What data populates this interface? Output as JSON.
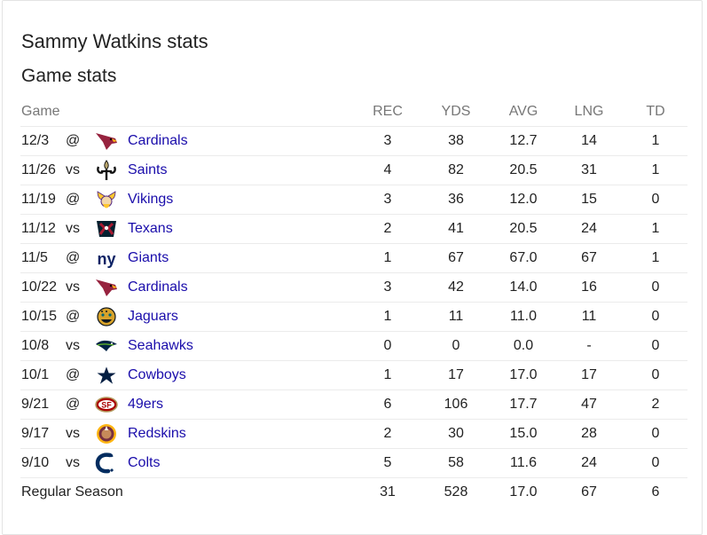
{
  "title": "Sammy Watkins stats",
  "subtitle": "Game stats",
  "headers": {
    "game": "Game",
    "rec": "REC",
    "yds": "YDS",
    "avg": "AVG",
    "lng": "LNG",
    "td": "TD"
  },
  "games": [
    {
      "date": "12/3",
      "loc": "@",
      "team": "Cardinals",
      "icon": "cardinals-logo-icon",
      "rec": "3",
      "yds": "38",
      "avg": "12.7",
      "lng": "14",
      "td": "1"
    },
    {
      "date": "11/26",
      "loc": "vs",
      "team": "Saints",
      "icon": "saints-logo-icon",
      "rec": "4",
      "yds": "82",
      "avg": "20.5",
      "lng": "31",
      "td": "1"
    },
    {
      "date": "11/19",
      "loc": "@",
      "team": "Vikings",
      "icon": "vikings-logo-icon",
      "rec": "3",
      "yds": "36",
      "avg": "12.0",
      "lng": "15",
      "td": "0"
    },
    {
      "date": "11/12",
      "loc": "vs",
      "team": "Texans",
      "icon": "texans-logo-icon",
      "rec": "2",
      "yds": "41",
      "avg": "20.5",
      "lng": "24",
      "td": "1"
    },
    {
      "date": "11/5",
      "loc": "@",
      "team": "Giants",
      "icon": "giants-logo-icon",
      "rec": "1",
      "yds": "67",
      "avg": "67.0",
      "lng": "67",
      "td": "1"
    },
    {
      "date": "10/22",
      "loc": "vs",
      "team": "Cardinals",
      "icon": "cardinals-logo-icon",
      "rec": "3",
      "yds": "42",
      "avg": "14.0",
      "lng": "16",
      "td": "0"
    },
    {
      "date": "10/15",
      "loc": "@",
      "team": "Jaguars",
      "icon": "jaguars-logo-icon",
      "rec": "1",
      "yds": "11",
      "avg": "11.0",
      "lng": "11",
      "td": "0"
    },
    {
      "date": "10/8",
      "loc": "vs",
      "team": "Seahawks",
      "icon": "seahawks-logo-icon",
      "rec": "0",
      "yds": "0",
      "avg": "0.0",
      "lng": "-",
      "td": "0"
    },
    {
      "date": "10/1",
      "loc": "@",
      "team": "Cowboys",
      "icon": "cowboys-logo-icon",
      "rec": "1",
      "yds": "17",
      "avg": "17.0",
      "lng": "17",
      "td": "0"
    },
    {
      "date": "9/21",
      "loc": "@",
      "team": "49ers",
      "icon": "49ers-logo-icon",
      "rec": "6",
      "yds": "106",
      "avg": "17.7",
      "lng": "47",
      "td": "2"
    },
    {
      "date": "9/17",
      "loc": "vs",
      "team": "Redskins",
      "icon": "redskins-logo-icon",
      "rec": "2",
      "yds": "30",
      "avg": "15.0",
      "lng": "28",
      "td": "0"
    },
    {
      "date": "9/10",
      "loc": "vs",
      "team": "Colts",
      "icon": "colts-logo-icon",
      "rec": "5",
      "yds": "58",
      "avg": "11.6",
      "lng": "24",
      "td": "0"
    }
  ],
  "total": {
    "label": "Regular Season",
    "rec": "31",
    "yds": "528",
    "avg": "17.0",
    "lng": "67",
    "td": "6"
  },
  "colors": {
    "link": "#1a0dab",
    "header_text": "#777777",
    "divider": "#ebebeb"
  }
}
